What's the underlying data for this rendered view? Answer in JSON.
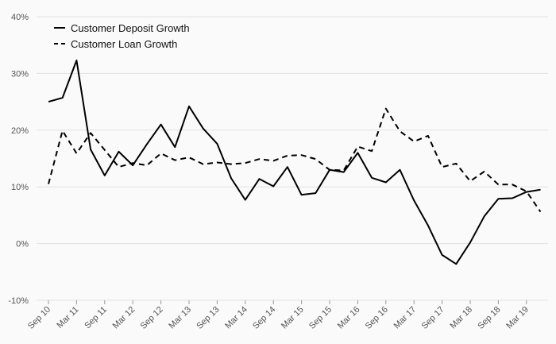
{
  "chart_data": {
    "type": "line",
    "title": "",
    "xlabel": "",
    "ylabel": "",
    "ylim": [
      -10,
      40
    ],
    "yticks": [
      -10,
      0,
      10,
      20,
      30,
      40
    ],
    "ytick_labels": [
      "-10%",
      "0%",
      "10%",
      "20%",
      "30%",
      "40%"
    ],
    "grid": true,
    "legend_position": "top-left",
    "x": [
      "Sep 10",
      "Dec 10",
      "Mar 11",
      "Jun 11",
      "Sep 11",
      "Dec 11",
      "Mar 12",
      "Jun 12",
      "Sep 12",
      "Dec 12",
      "Mar 13",
      "Jun 13",
      "Sep 13",
      "Dec 13",
      "Mar 14",
      "Jun 14",
      "Sep 14",
      "Dec 14",
      "Mar 15",
      "Jun 15",
      "Sep 15",
      "Dec 15",
      "Mar 16",
      "Jun 16",
      "Sep 16",
      "Dec 16",
      "Mar 17",
      "Jun 17",
      "Sep 17",
      "Dec 17",
      "Mar 18",
      "Jun 18",
      "Sep 18",
      "Dec 18",
      "Mar 19",
      "Jun 19"
    ],
    "xtick_labels": [
      "Sep 10",
      "Mar 11",
      "Sep 11",
      "Mar 12",
      "Sep 12",
      "Mar 13",
      "Sep 13",
      "Mar 14",
      "Sep 14",
      "Mar 15",
      "Sep 15",
      "Mar 16",
      "Sep 16",
      "Mar 17",
      "Sep 17",
      "Mar 18",
      "Sep 18",
      "Mar 19"
    ],
    "series": [
      {
        "name": "Customer Deposit Growth",
        "style": "solid",
        "color": "#000000",
        "values": [
          25.0,
          25.7,
          32.3,
          16.6,
          12.0,
          16.2,
          13.8,
          17.5,
          21.0,
          17.0,
          24.2,
          20.3,
          17.6,
          11.5,
          7.7,
          11.4,
          10.1,
          13.5,
          8.6,
          8.9,
          13.0,
          12.6,
          16.0,
          11.6,
          10.8,
          13.0,
          7.6,
          3.2,
          -2.0,
          -3.6,
          0.2,
          4.8,
          7.9,
          8.0,
          9.1,
          9.5
        ]
      },
      {
        "name": "Customer Loan Growth",
        "style": "dashed",
        "color": "#000000",
        "values": [
          10.5,
          19.9,
          15.9,
          19.5,
          16.5,
          13.5,
          14.2,
          13.8,
          15.9,
          14.7,
          15.2,
          14.0,
          14.3,
          14.0,
          14.2,
          14.9,
          14.6,
          15.5,
          15.6,
          14.9,
          13.0,
          12.9,
          17.1,
          16.3,
          23.8,
          19.8,
          18.0,
          19.0,
          13.5,
          14.1,
          11.0,
          12.7,
          10.4,
          10.4,
          9.2,
          5.6
        ]
      }
    ]
  }
}
